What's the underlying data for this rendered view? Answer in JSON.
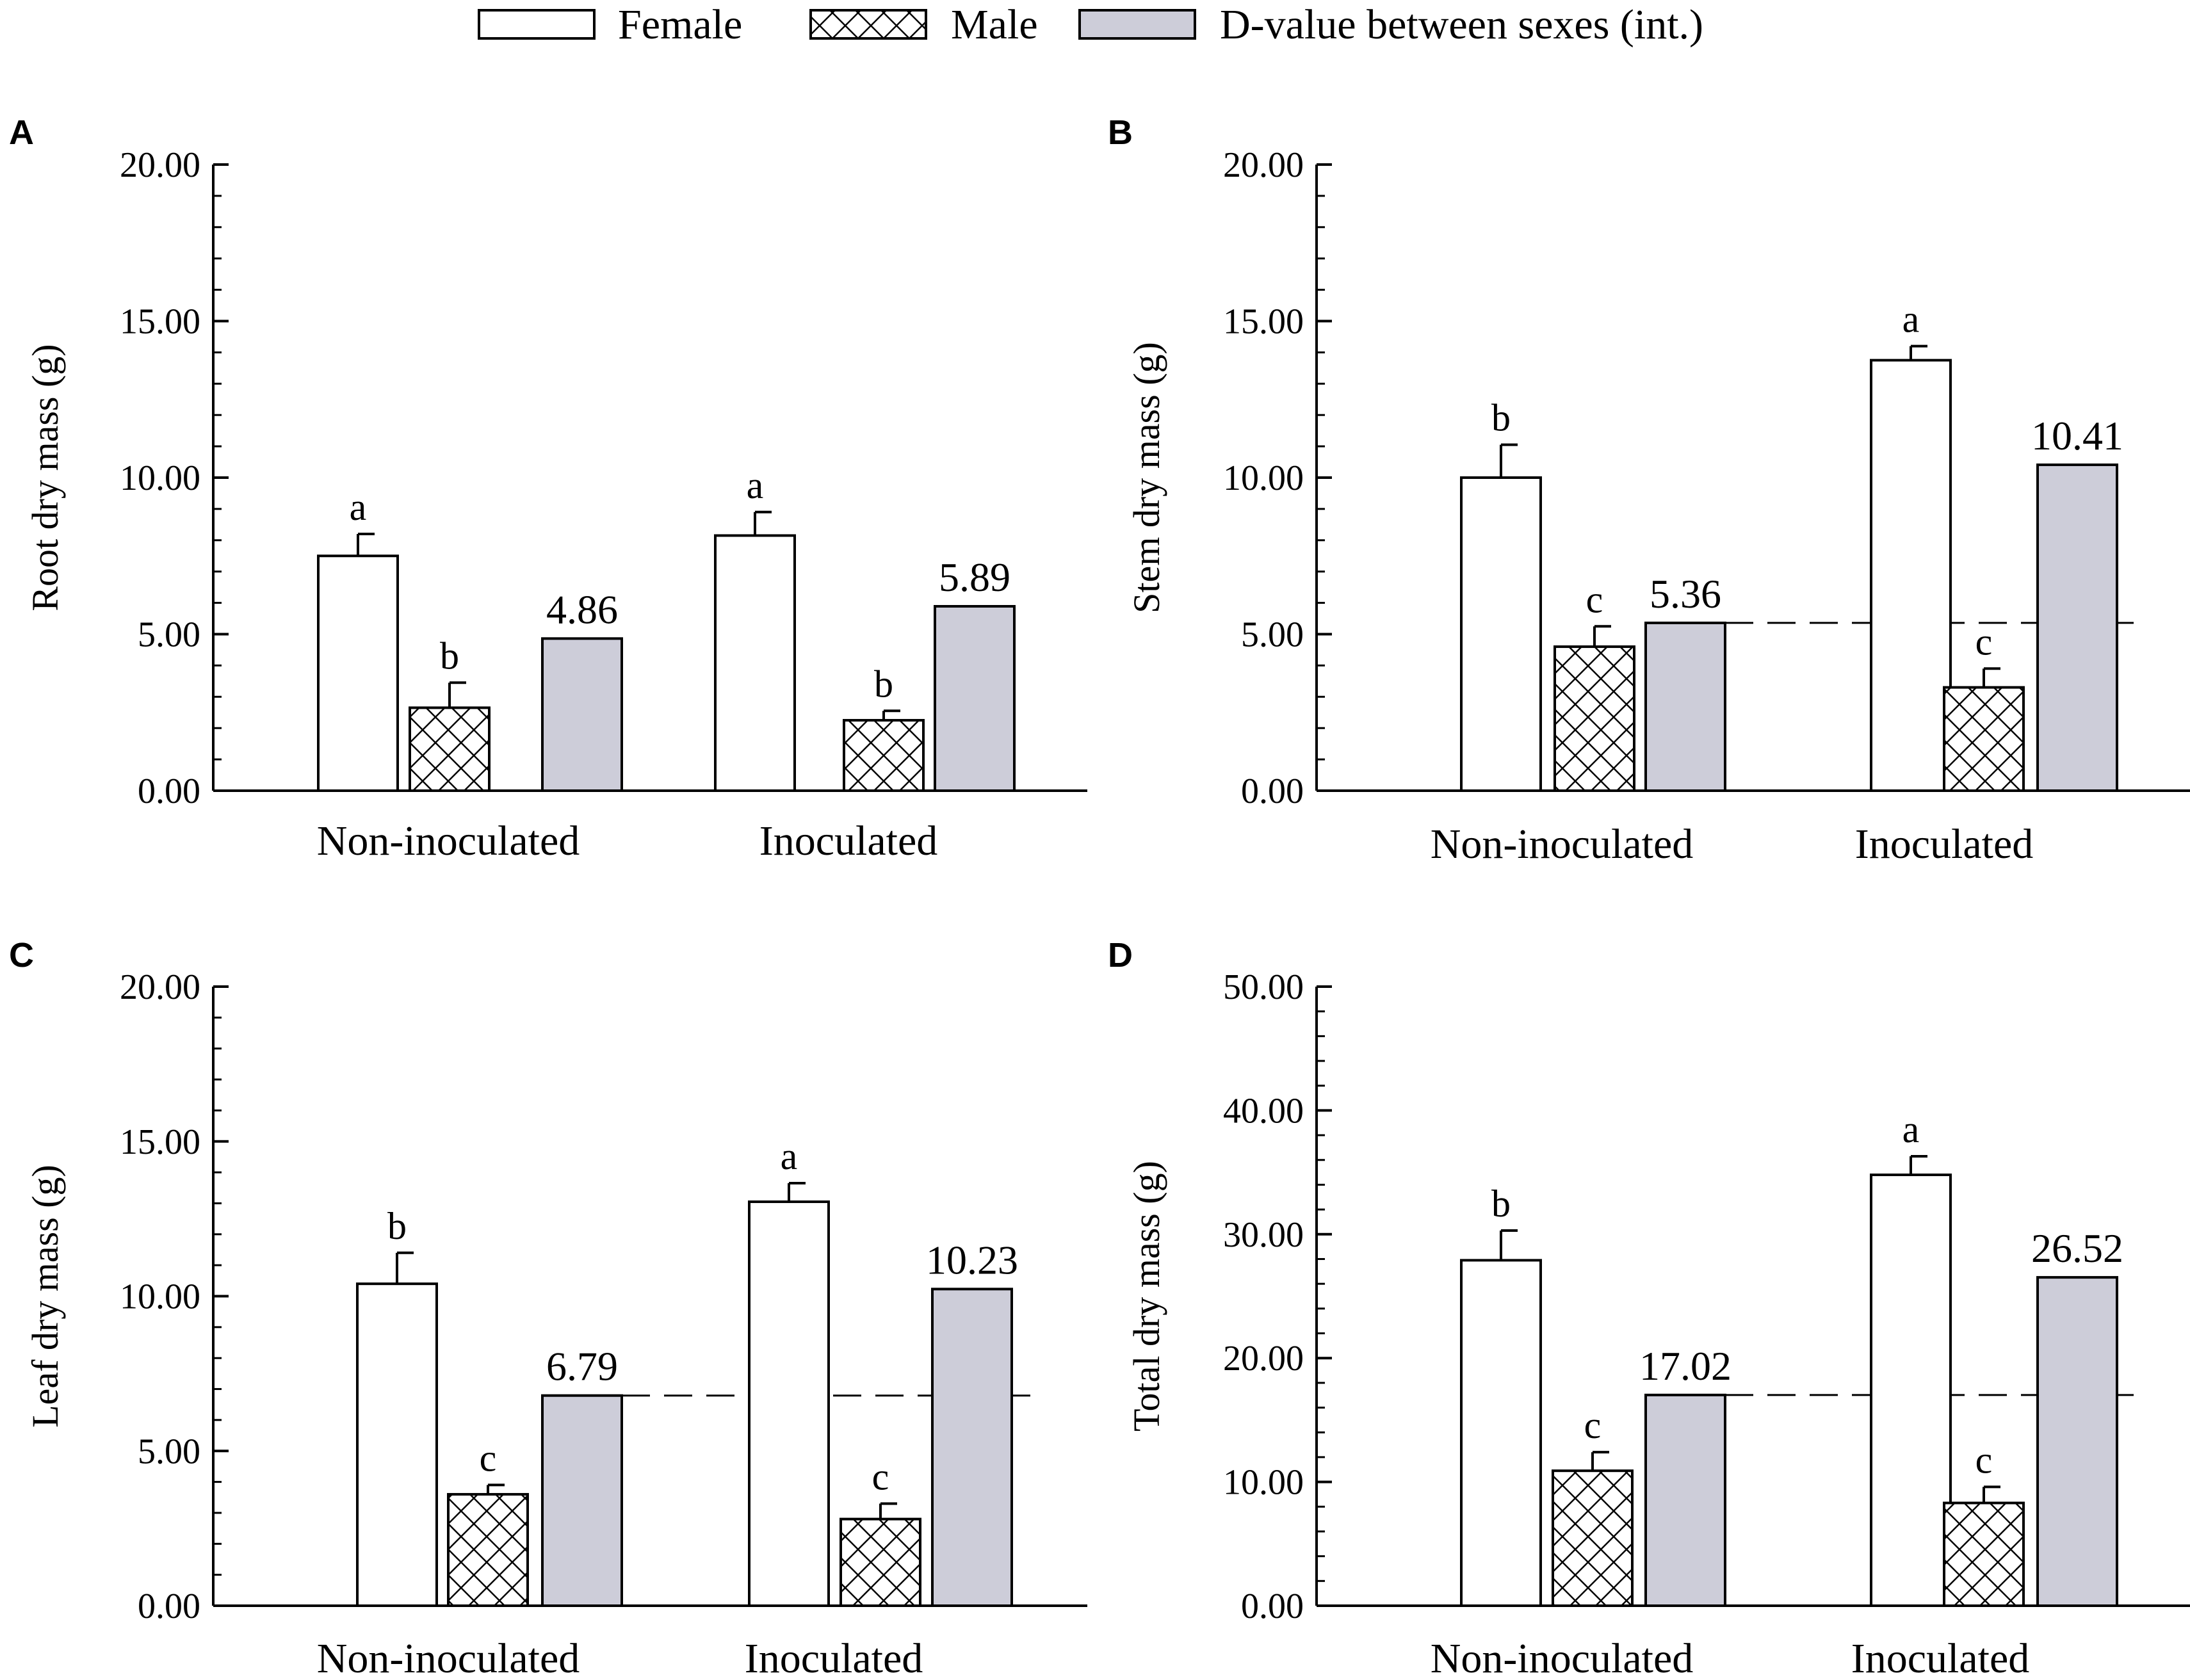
{
  "legend": {
    "female_label": "Female",
    "male_label": "Male",
    "dvalue_label": "D-value between sexes (int.)",
    "position": "top-center"
  },
  "colors": {
    "female_fill": "#ffffff",
    "male_fill": "#ffffff",
    "dvalue_fill": "#cdcdd9",
    "stroke": "#000000"
  },
  "chart_data": [
    {
      "type": "bar",
      "panel": "A",
      "ylabel": "Root dry mass (g)",
      "ylim": [
        0,
        20
      ],
      "yticks": [
        "0.00",
        "5.00",
        "10.00",
        "15.00",
        "20.00"
      ],
      "categories": [
        "Non-inoculated",
        "Inoculated"
      ],
      "series": [
        {
          "name": "Female",
          "values": [
            7.5,
            8.15
          ],
          "errors": [
            0.7,
            0.75
          ],
          "letters": [
            "a",
            "a"
          ]
        },
        {
          "name": "Male",
          "values": [
            2.65,
            2.25
          ],
          "errors": [
            0.8,
            0.3
          ],
          "letters": [
            "b",
            "b"
          ]
        },
        {
          "name": "D-value between sexes (int.)",
          "values": [
            4.86,
            5.89
          ],
          "labels": [
            "4.86",
            "5.89"
          ]
        }
      ],
      "reference_line": null
    },
    {
      "type": "bar",
      "panel": "B",
      "ylabel": "Stem dry mass (g)",
      "ylim": [
        0,
        20
      ],
      "yticks": [
        "0.00",
        "5.00",
        "10.00",
        "15.00",
        "20.00"
      ],
      "categories": [
        "Non-inoculated",
        "Inoculated"
      ],
      "series": [
        {
          "name": "Female",
          "values": [
            10.0,
            13.75
          ],
          "errors": [
            1.05,
            0.45
          ],
          "letters": [
            "b",
            "a"
          ]
        },
        {
          "name": "Male",
          "values": [
            4.6,
            3.3
          ],
          "errors": [
            0.65,
            0.6
          ],
          "letters": [
            "c",
            "c"
          ]
        },
        {
          "name": "D-value between sexes (int.)",
          "values": [
            5.36,
            10.41
          ],
          "labels": [
            "5.36",
            "10.41"
          ]
        }
      ],
      "reference_line": 5.36
    },
    {
      "type": "bar",
      "panel": "C",
      "ylabel": "Leaf dry mass (g)",
      "ylim": [
        0,
        20
      ],
      "yticks": [
        "0.00",
        "5.00",
        "10.00",
        "15.00",
        "20.00"
      ],
      "categories": [
        "Non-inoculated",
        "Inoculated"
      ],
      "series": [
        {
          "name": "Female",
          "values": [
            10.4,
            13.05
          ],
          "errors": [
            1.0,
            0.6
          ],
          "letters": [
            "b",
            "a"
          ]
        },
        {
          "name": "Male",
          "values": [
            3.6,
            2.8
          ],
          "errors": [
            0.3,
            0.5
          ],
          "letters": [
            "c",
            "c"
          ]
        },
        {
          "name": "D-value between sexes (int.)",
          "values": [
            6.79,
            10.23
          ],
          "labels": [
            "6.79",
            "10.23"
          ]
        }
      ],
      "reference_line": 6.79
    },
    {
      "type": "bar",
      "panel": "D",
      "ylabel": "Total dry mass (g)",
      "ylim": [
        0,
        50
      ],
      "yticks": [
        "0.00",
        "10.00",
        "20.00",
        "30.00",
        "40.00",
        "50.00"
      ],
      "categories": [
        "Non-inoculated",
        "Inoculated"
      ],
      "series": [
        {
          "name": "Female",
          "values": [
            27.9,
            34.8
          ],
          "errors": [
            2.4,
            1.5
          ],
          "letters": [
            "b",
            "a"
          ]
        },
        {
          "name": "Male",
          "values": [
            10.9,
            8.3
          ],
          "errors": [
            1.5,
            1.3
          ],
          "letters": [
            "c",
            "c"
          ]
        },
        {
          "name": "D-value between sexes (int.)",
          "values": [
            17.02,
            26.52
          ],
          "labels": [
            "17.02",
            "26.52"
          ]
        }
      ],
      "reference_line": 17.02
    }
  ]
}
